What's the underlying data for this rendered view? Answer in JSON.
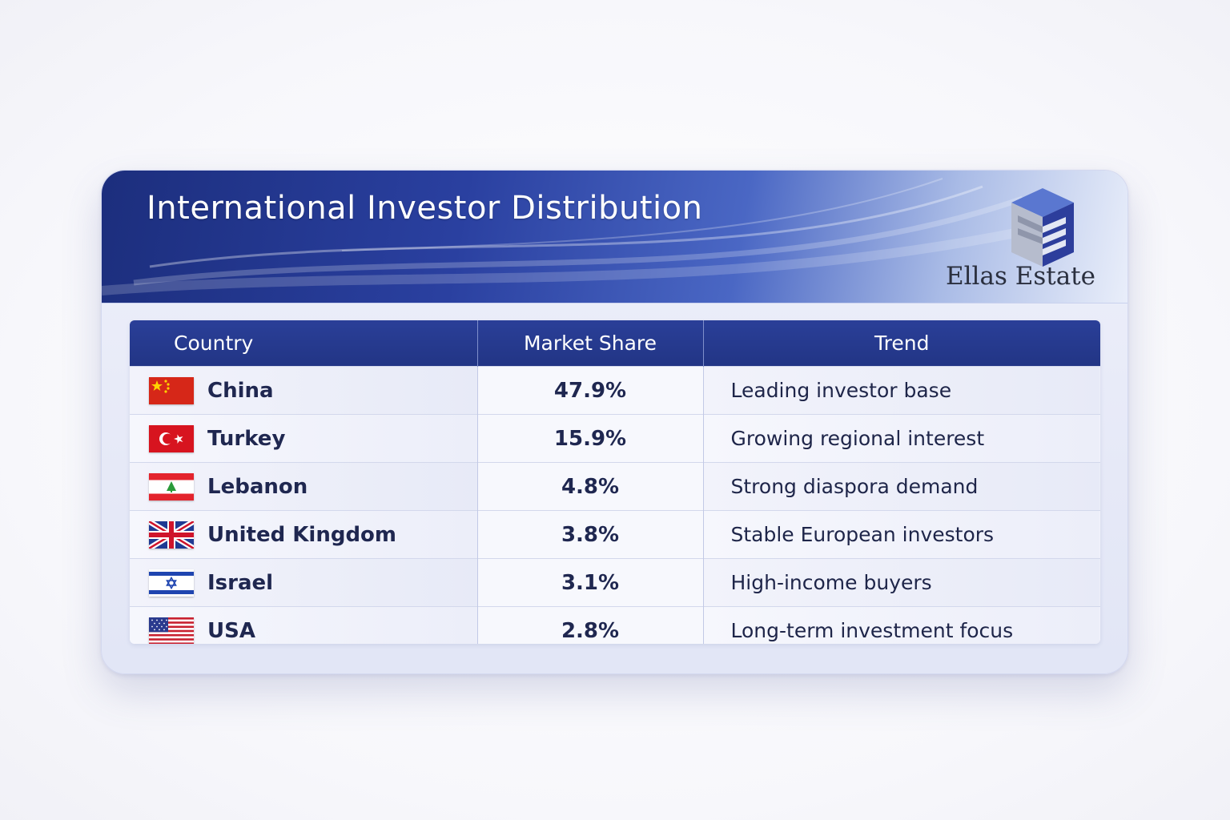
{
  "header": {
    "title": "International Investor Distribution",
    "brand": "Ellas Estate"
  },
  "colors": {
    "banner_dark": "#1c2e7d",
    "header_row": "#223585",
    "text_dark": "#1f2750"
  },
  "chart_data": {
    "type": "table",
    "columns": [
      "Country",
      "Market Share",
      "Trend"
    ],
    "rows": [
      {
        "country": "China",
        "flag": "china-flag-icon",
        "share": "47.9%",
        "value": 47.9,
        "trend": "Leading investor base"
      },
      {
        "country": "Turkey",
        "flag": "turkey-flag-icon",
        "share": "15.9%",
        "value": 15.9,
        "trend": "Growing regional interest"
      },
      {
        "country": "Lebanon",
        "flag": "lebanon-flag-icon",
        "share": "4.8%",
        "value": 4.8,
        "trend": "Strong diaspora demand"
      },
      {
        "country": "United Kingdom",
        "flag": "uk-flag-icon",
        "share": "3.8%",
        "value": 3.8,
        "trend": "Stable European investors"
      },
      {
        "country": "Israel",
        "flag": "israel-flag-icon",
        "share": "3.1%",
        "value": 3.1,
        "trend": "High-income buyers"
      },
      {
        "country": "USA",
        "flag": "usa-flag-icon",
        "share": "2.8%",
        "value": 2.8,
        "trend": "Long-term investment focus"
      }
    ]
  }
}
